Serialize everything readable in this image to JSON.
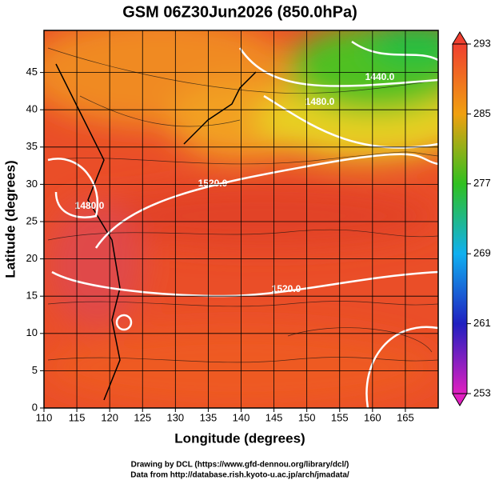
{
  "chart_data": {
    "type": "map",
    "title": "GSM 06Z30Jun2026 (850.0hPa)",
    "x_label": "Longitude (degrees)",
    "y_label": "Latitude  (degrees)",
    "xlim": [
      110,
      170
    ],
    "xticks": [
      110,
      115,
      120,
      125,
      130,
      135,
      140,
      145,
      150,
      155,
      160,
      165
    ],
    "ylim": [
      0,
      50
    ],
    "yticks": [
      0,
      5,
      10,
      15,
      20,
      25,
      30,
      35,
      40,
      45
    ],
    "grid": true,
    "colorbar": {
      "lim": [
        253,
        293
      ],
      "ticks": [
        253,
        261,
        269,
        277,
        285,
        293
      ]
    },
    "contour_labels": [
      "1440.0",
      "1480.0",
      "1520.0",
      "1480.0",
      "1520.0"
    ]
  },
  "credits": [
    "Drawing by DCL (https://www.gfd-dennou.org/library/dcl/)",
    "Data from http://database.rish.kyoto-u.ac.jp/arch/jmadata/"
  ]
}
